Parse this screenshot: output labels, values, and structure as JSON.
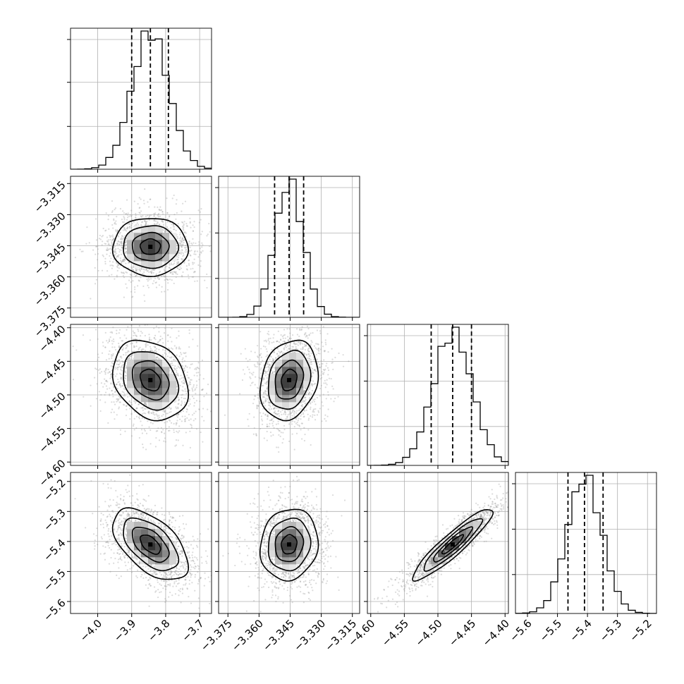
{
  "chart_data": {
    "type": "corner",
    "grid": true,
    "parameters": [
      {
        "index": 0,
        "range": [
          -4.08,
          -3.665
        ],
        "ticks": [
          -4.0,
          -3.9,
          -3.8,
          -3.7
        ],
        "tick_labels": [
          "−4.0",
          "−3.9",
          "−3.8",
          "−3.7"
        ],
        "quantiles": [
          -3.9,
          -3.845,
          -3.792
        ],
        "mean": -3.845,
        "sd": 0.054,
        "hist_ticks": [
          0.33,
          0.67,
          1.0
        ]
      },
      {
        "index": 1,
        "range": [
          -3.3795,
          -3.3115
        ],
        "ticks": [
          -3.375,
          -3.36,
          -3.345,
          -3.33,
          -3.315
        ],
        "tick_labels": [
          "−3.375",
          "−3.360",
          "−3.345",
          "−3.330",
          "−3.315"
        ],
        "quantiles": [
          -3.3525,
          -3.3455,
          -3.3385
        ],
        "mean": -3.3455,
        "sd": 0.0068,
        "hist_ticks": [
          0.3,
          0.65,
          1.0
        ]
      },
      {
        "index": 2,
        "range": [
          -4.605,
          -4.395
        ],
        "ticks": [
          -4.6,
          -4.55,
          -4.5,
          -4.45,
          -4.4
        ],
        "tick_labels": [
          "−4.60",
          "−4.55",
          "−4.50",
          "−4.45",
          "−4.40"
        ],
        "quantiles": [
          -4.51,
          -4.478,
          -4.45
        ],
        "mean": -4.478,
        "sd": 0.029,
        "hist_ticks": [
          0.3,
          0.65,
          1.0
        ]
      },
      {
        "index": 3,
        "range": [
          -5.64,
          -5.17
        ],
        "ticks": [
          -5.6,
          -5.5,
          -5.4,
          -5.3,
          -5.2
        ],
        "tick_labels": [
          "−5.6",
          "−5.5",
          "−5.4",
          "−5.3",
          "−5.2"
        ],
        "quantiles": [
          -5.465,
          -5.41,
          -5.348
        ],
        "mean": -5.41,
        "sd": 0.058,
        "hist_ticks": [
          0.3,
          0.65,
          1.0
        ]
      }
    ],
    "correlations": [
      {
        "x": 0,
        "y": 1,
        "rho": 0.0
      },
      {
        "x": 0,
        "y": 2,
        "rho": -0.25
      },
      {
        "x": 1,
        "y": 2,
        "rho": 0.2
      },
      {
        "x": 0,
        "y": 3,
        "rho": -0.55
      },
      {
        "x": 1,
        "y": 3,
        "rho": 0.1
      },
      {
        "x": 2,
        "y": 3,
        "rho": 0.92
      }
    ],
    "contour_levels_sigma": [
      0.5,
      1.0,
      1.5,
      2.0
    ],
    "histogram_bins": 20,
    "scatter_color": "#999999",
    "density_color": "#000000"
  }
}
